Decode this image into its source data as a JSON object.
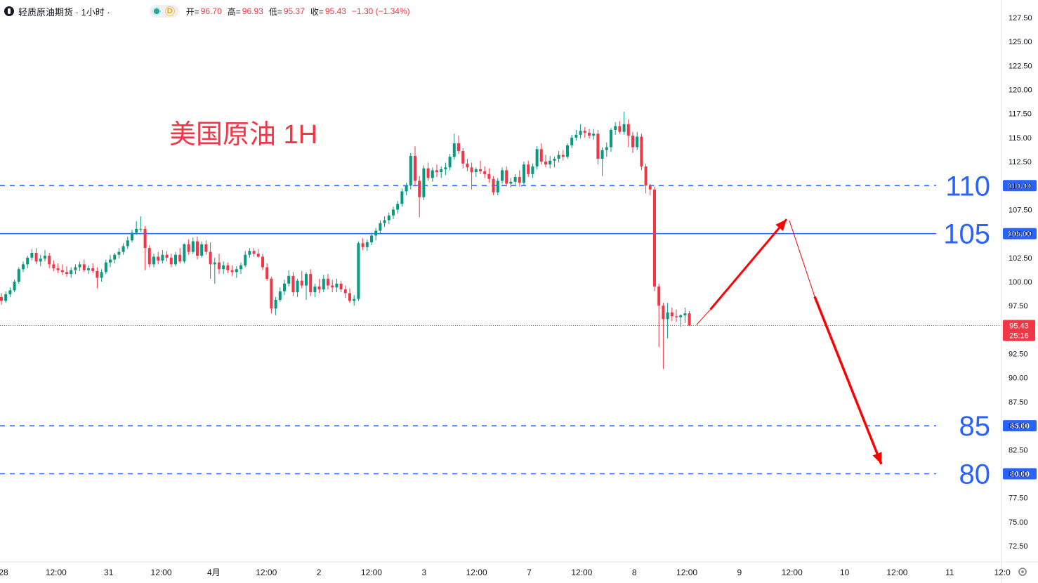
{
  "header": {
    "title": "轻质原油期货 · 1小时 ·",
    "dot_label": "D",
    "open_label": "开=",
    "open": "96.70",
    "high_label": "高=",
    "high": "96.93",
    "low_label": "低=",
    "low": "95.37",
    "close_label": "收=",
    "close": "95.43",
    "change": "−1.30 (−1.34%)"
  },
  "annotation": {
    "title": "美国原油 1H",
    "color": "#f23645"
  },
  "levels": [
    {
      "value": 110,
      "label": "110",
      "tag": "110.00",
      "style": "dashed"
    },
    {
      "value": 105,
      "label": "105",
      "tag": "105.00",
      "style": "solid"
    },
    {
      "value": 85,
      "label": "85",
      "tag": "85.00",
      "style": "dashed"
    },
    {
      "value": 80,
      "label": "80",
      "tag": "80.00",
      "style": "dashed"
    }
  ],
  "price_tag": {
    "value": 95.43,
    "price": "95.43",
    "countdown": "25:16"
  },
  "colors": {
    "up": "#089981",
    "down": "#f23645",
    "level": "#2962ff",
    "axis_text": "#131722"
  },
  "chart_data": {
    "type": "candlestick",
    "y_ticks": [
      "127.50",
      "125.00",
      "122.50",
      "120.00",
      "117.50",
      "115.00",
      "112.50",
      "110.00",
      "107.50",
      "105.00",
      "102.50",
      "100.00",
      "97.50",
      "95.00",
      "92.50",
      "90.00",
      "87.50",
      "85.00",
      "82.50",
      "80.00",
      "77.50",
      "75.00",
      "72.50"
    ],
    "x_ticks": [
      "28",
      "12:00",
      "31",
      "12:00",
      "4月",
      "12:00",
      "2",
      "12:00",
      "3",
      "12:00",
      "7",
      "12:00",
      "8",
      "12:00",
      "9",
      "12:00",
      "10",
      "12:00",
      "11",
      "12:0"
    ],
    "ylim": [
      71.5,
      128.5
    ],
    "projection": [
      95.5,
      106.5,
      81.0
    ],
    "ohlc": [
      [
        98.4,
        98.8,
        97.6,
        98.0
      ],
      [
        98.0,
        99.0,
        97.8,
        98.7
      ],
      [
        98.7,
        99.4,
        98.4,
        99.1
      ],
      [
        99.1,
        100.2,
        98.9,
        100.0
      ],
      [
        100.0,
        101.5,
        99.8,
        101.3
      ],
      [
        101.3,
        102.1,
        101.0,
        101.8
      ],
      [
        101.8,
        102.7,
        101.4,
        102.5
      ],
      [
        102.5,
        103.4,
        102.2,
        103.0
      ],
      [
        103.0,
        103.5,
        101.8,
        102.1
      ],
      [
        102.1,
        102.8,
        101.6,
        102.4
      ],
      [
        102.4,
        103.3,
        102.1,
        102.7
      ],
      [
        102.7,
        103.0,
        101.4,
        101.8
      ],
      [
        101.8,
        102.2,
        101.1,
        101.4
      ],
      [
        101.4,
        101.9,
        100.9,
        101.2
      ],
      [
        101.2,
        101.8,
        100.7,
        101.0
      ],
      [
        101.0,
        101.6,
        100.5,
        100.8
      ],
      [
        100.8,
        101.5,
        100.4,
        101.2
      ],
      [
        101.2,
        101.8,
        100.8,
        101.5
      ],
      [
        101.5,
        102.1,
        101.1,
        101.8
      ],
      [
        101.8,
        102.3,
        101.0,
        101.2
      ],
      [
        101.2,
        101.7,
        100.8,
        101.4
      ],
      [
        101.4,
        101.9,
        100.9,
        101.1
      ],
      [
        101.1,
        101.5,
        99.3,
        100.4
      ],
      [
        100.4,
        101.3,
        100.0,
        101.0
      ],
      [
        101.0,
        102.3,
        100.8,
        102.0
      ],
      [
        102.0,
        102.8,
        101.5,
        102.3
      ],
      [
        102.3,
        103.0,
        101.9,
        102.8
      ],
      [
        102.8,
        103.5,
        102.4,
        103.1
      ],
      [
        103.1,
        104.0,
        102.8,
        103.7
      ],
      [
        103.7,
        104.7,
        103.4,
        104.3
      ],
      [
        104.3,
        105.4,
        104.1,
        105.1
      ],
      [
        105.1,
        106.3,
        104.9,
        105.5
      ],
      [
        105.5,
        106.8,
        105.2,
        105.5
      ],
      [
        105.5,
        105.8,
        101.2,
        103.5
      ],
      [
        103.5,
        103.8,
        101.5,
        101.8
      ],
      [
        101.8,
        102.9,
        101.5,
        102.6
      ],
      [
        102.6,
        103.1,
        101.8,
        102.2
      ],
      [
        102.2,
        103.3,
        101.9,
        102.8
      ],
      [
        102.8,
        103.2,
        102.1,
        102.5
      ],
      [
        102.5,
        102.9,
        101.5,
        101.8
      ],
      [
        101.8,
        103.1,
        101.6,
        102.8
      ],
      [
        102.8,
        103.5,
        101.9,
        102.1
      ],
      [
        102.1,
        104.0,
        101.9,
        103.9
      ],
      [
        103.9,
        104.4,
        102.8,
        103.1
      ],
      [
        103.1,
        104.6,
        102.9,
        104.2
      ],
      [
        104.2,
        104.7,
        102.3,
        102.7
      ],
      [
        102.7,
        104.2,
        102.5,
        103.9
      ],
      [
        103.9,
        104.3,
        102.8,
        103.1
      ],
      [
        103.1,
        104.1,
        100.3,
        101.8
      ],
      [
        101.8,
        102.5,
        99.8,
        102.0
      ],
      [
        102.0,
        102.9,
        100.8,
        101.3
      ],
      [
        101.3,
        102.1,
        100.8,
        101.7
      ],
      [
        101.7,
        102.0,
        100.9,
        101.2
      ],
      [
        101.2,
        101.7,
        100.6,
        101.0
      ],
      [
        101.0,
        101.6,
        100.4,
        101.3
      ],
      [
        101.3,
        102.0,
        100.8,
        101.7
      ],
      [
        101.7,
        103.2,
        101.5,
        102.8
      ],
      [
        102.8,
        103.5,
        102.5,
        103.2
      ],
      [
        103.2,
        103.5,
        102.6,
        102.9
      ],
      [
        102.9,
        103.4,
        102.5,
        102.6
      ],
      [
        102.6,
        102.9,
        101.2,
        101.5
      ],
      [
        101.5,
        101.9,
        100.1,
        100.3
      ],
      [
        100.3,
        100.5,
        96.7,
        97.2
      ],
      [
        97.2,
        98.4,
        96.5,
        98.1
      ],
      [
        98.1,
        99.4,
        97.9,
        99.0
      ],
      [
        99.0,
        100.2,
        98.6,
        99.8
      ],
      [
        99.8,
        101.2,
        99.5,
        100.6
      ],
      [
        100.6,
        101.0,
        98.5,
        98.9
      ],
      [
        98.9,
        100.3,
        98.4,
        100.1
      ],
      [
        100.1,
        101.1,
        99.3,
        99.6
      ],
      [
        99.6,
        101.0,
        98.1,
        100.8
      ],
      [
        100.8,
        101.3,
        98.5,
        98.9
      ],
      [
        98.9,
        99.8,
        98.4,
        99.5
      ],
      [
        99.5,
        100.3,
        98.8,
        99.2
      ],
      [
        99.2,
        100.7,
        98.9,
        100.3
      ],
      [
        100.3,
        100.8,
        99.2,
        99.6
      ],
      [
        99.6,
        100.2,
        98.9,
        99.4
      ],
      [
        99.4,
        100.3,
        98.9,
        99.8
      ],
      [
        99.8,
        100.1,
        98.9,
        99.2
      ],
      [
        99.2,
        99.6,
        98.3,
        98.8
      ],
      [
        98.8,
        99.3,
        97.8,
        98.0
      ],
      [
        98.0,
        98.6,
        97.5,
        98.2
      ],
      [
        98.2,
        104.2,
        98.0,
        104.0
      ],
      [
        104.0,
        104.5,
        103.3,
        103.6
      ],
      [
        103.6,
        104.4,
        103.2,
        104.1
      ],
      [
        104.1,
        105.1,
        103.8,
        104.8
      ],
      [
        104.8,
        105.6,
        104.3,
        105.3
      ],
      [
        105.3,
        106.4,
        105.0,
        106.1
      ],
      [
        106.1,
        106.8,
        105.7,
        106.4
      ],
      [
        106.4,
        107.2,
        106.0,
        106.9
      ],
      [
        106.9,
        107.8,
        106.5,
        107.5
      ],
      [
        107.5,
        108.4,
        107.1,
        108.1
      ],
      [
        108.1,
        109.7,
        107.8,
        109.4
      ],
      [
        109.4,
        110.3,
        109.0,
        110.0
      ],
      [
        110.0,
        113.4,
        109.6,
        113.1
      ],
      [
        113.1,
        114.1,
        109.9,
        110.5
      ],
      [
        110.5,
        111.0,
        106.7,
        108.8
      ],
      [
        108.8,
        112.1,
        108.5,
        111.8
      ],
      [
        111.8,
        112.4,
        110.5,
        110.8
      ],
      [
        110.8,
        111.9,
        110.4,
        111.6
      ],
      [
        111.6,
        112.2,
        110.9,
        111.4
      ],
      [
        111.4,
        112.0,
        110.8,
        111.7
      ],
      [
        111.7,
        112.4,
        111.1,
        111.9
      ],
      [
        111.9,
        113.3,
        111.6,
        113.0
      ],
      [
        113.0,
        115.4,
        112.7,
        114.4
      ],
      [
        114.4,
        115.2,
        113.3,
        113.6
      ],
      [
        113.6,
        113.9,
        111.8,
        112.3
      ],
      [
        112.3,
        112.8,
        111.5,
        111.9
      ],
      [
        111.9,
        112.4,
        109.6,
        111.4
      ],
      [
        111.4,
        111.9,
        110.9,
        111.7
      ],
      [
        111.7,
        112.6,
        111.2,
        111.5
      ],
      [
        111.5,
        112.0,
        110.8,
        111.2
      ],
      [
        111.2,
        111.8,
        110.3,
        110.7
      ],
      [
        110.7,
        111.0,
        109.0,
        109.3
      ],
      [
        109.3,
        110.8,
        109.0,
        110.5
      ],
      [
        110.5,
        111.9,
        110.2,
        111.6
      ],
      [
        111.6,
        112.0,
        109.9,
        110.2
      ],
      [
        110.2,
        110.8,
        109.8,
        110.4
      ],
      [
        110.4,
        111.2,
        110.1,
        110.9
      ],
      [
        110.9,
        111.6,
        109.9,
        110.3
      ],
      [
        110.3,
        112.5,
        110.0,
        112.2
      ],
      [
        112.2,
        112.6,
        110.9,
        111.2
      ],
      [
        111.2,
        112.3,
        110.8,
        112.0
      ],
      [
        112.0,
        114.1,
        111.7,
        113.8
      ],
      [
        113.8,
        114.4,
        112.2,
        112.5
      ],
      [
        112.5,
        113.2,
        111.9,
        112.2
      ],
      [
        112.2,
        113.1,
        111.8,
        112.6
      ],
      [
        112.6,
        113.0,
        111.9,
        112.8
      ],
      [
        112.8,
        113.6,
        112.4,
        113.2
      ],
      [
        113.2,
        113.7,
        112.6,
        113.0
      ],
      [
        113.0,
        114.4,
        112.8,
        114.2
      ],
      [
        114.2,
        115.3,
        113.9,
        115.0
      ],
      [
        115.0,
        115.8,
        114.7,
        115.3
      ],
      [
        115.3,
        116.4,
        114.9,
        115.7
      ],
      [
        115.7,
        116.1,
        115.0,
        115.5
      ],
      [
        115.5,
        115.9,
        114.9,
        115.2
      ],
      [
        115.2,
        115.9,
        114.8,
        115.4
      ],
      [
        115.4,
        115.8,
        112.2,
        112.8
      ],
      [
        112.8,
        114.0,
        111.0,
        113.7
      ],
      [
        113.7,
        114.5,
        113.0,
        114.0
      ],
      [
        114.0,
        116.0,
        113.5,
        115.8
      ],
      [
        115.8,
        116.6,
        115.3,
        116.2
      ],
      [
        116.2,
        116.7,
        115.4,
        115.6
      ],
      [
        115.6,
        117.7,
        115.3,
        116.4
      ],
      [
        116.4,
        116.9,
        114.0,
        115.2
      ],
      [
        115.2,
        115.6,
        113.4,
        114.0
      ],
      [
        114.0,
        115.6,
        113.7,
        115.1
      ],
      [
        115.1,
        115.4,
        111.6,
        112.0
      ],
      [
        112.0,
        112.3,
        109.2,
        110.0
      ],
      [
        110.0,
        110.2,
        109.0,
        109.6
      ],
      [
        109.6,
        109.9,
        99.0,
        99.5
      ],
      [
        99.5,
        99.8,
        93.2,
        97.5
      ],
      [
        97.5,
        97.8,
        90.9,
        96.1
      ],
      [
        96.1,
        97.8,
        94.1,
        96.8
      ],
      [
        96.8,
        97.3,
        95.9,
        96.4
      ],
      [
        96.4,
        97.1,
        95.8,
        96.3
      ],
      [
        96.3,
        96.6,
        95.3,
        96.5
      ],
      [
        96.5,
        97.3,
        95.7,
        96.7
      ],
      [
        96.7,
        96.93,
        95.37,
        95.43
      ]
    ]
  }
}
